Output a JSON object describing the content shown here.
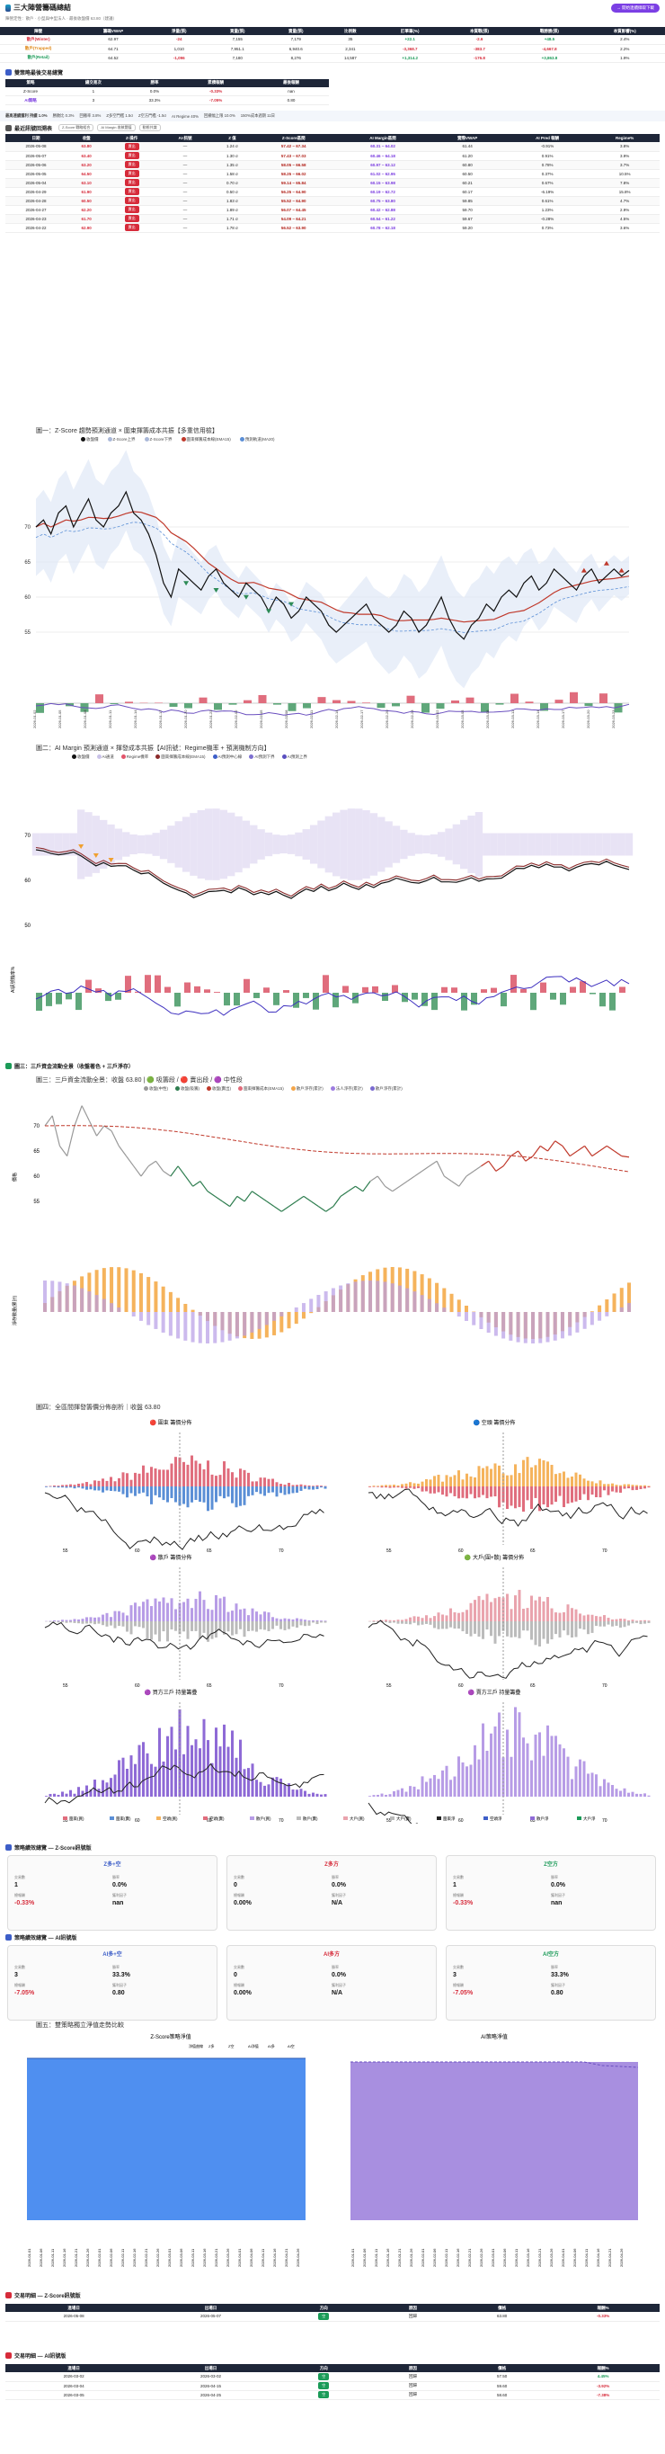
{
  "header": {
    "title": "三大陣營籌碼總結",
    "subtitle": "陣營定性：散戶 · 小型與中型法人 · 最後收盤價 63.80（建議）",
    "action_button": "→ 開始連續擷取下載"
  },
  "summary_table": {
    "columns": [
      "陣營",
      "籌碼VWAP",
      "淨量(張)",
      "買量(張)",
      "賣量(張)",
      "比例數",
      "訂單筆(%)",
      "本質戰(張)",
      "戰勝勝(張)",
      "本質影響(%)"
    ],
    "rows": [
      {
        "name": "散戶(Winter)",
        "c1": "62.97",
        "c2": "-24",
        "c3": "7,155",
        "c4": "7,179",
        "c5": "35",
        "c6": "+22.1",
        "c7": "-2.6",
        "c8": "+48.5",
        "c9": "2.4%"
      },
      {
        "name": "散戶(Trapped)",
        "c1": "64.71",
        "c2": "1,010",
        "c3": "7,951.1",
        "c4": "6,940.6",
        "c5": "2,341",
        "c6": "-3,368.7",
        "c7": "-383.7",
        "c8": "-4,667.8",
        "c9": "2.2%"
      },
      {
        "name": "散戶(Retail)",
        "c1": "64.52",
        "c2": "-1,096",
        "c3": "7,180",
        "c4": "8,276",
        "c5": "14,587",
        "c6": "+1,314.2",
        "c7": "-176.8",
        "c8": "+3,863.8",
        "c9": "1.9%"
      }
    ]
  },
  "strategy": {
    "title": "雙策略最後交易總覽",
    "columns": [
      "策略",
      "總交易次",
      "勝率",
      "累積報酬",
      "最後報酬"
    ],
    "rows": [
      {
        "name": "Z-Score",
        "trades": "1",
        "win": "0.0%",
        "cum": "-0.33%",
        "last": "nan"
      },
      {
        "name": "AI策略",
        "trades": "3",
        "win": "33.3%",
        "cum": "-7.05%",
        "last": "0.80"
      }
    ]
  },
  "infobar": {
    "items": [
      "最高連續獲利 持續 1.0%",
      "勝敗比 0.3%",
      "回撤率 3.8%",
      "Z多空門檻 1.5σ",
      "Z空方門檻 -1.5σ",
      "AI Regime 40%",
      "回撤幅上限 10.0%",
      "150%成本週期 11日"
    ]
  },
  "recent": {
    "title": "最近訊號回溯表",
    "tags": [
      "Z-Score 戰略組合",
      "AI Margin 收斂閾值",
      "動態共識"
    ],
    "columns": [
      "日期",
      "收盤",
      "Z-操作",
      "AI-訊號",
      "Z 值",
      "Z-Score區間",
      "AI Margin區間",
      "實際VWAP",
      "AI Pred 報酬",
      "Regime%"
    ],
    "rows": [
      {
        "date": "2026-05-08",
        "close": "63.80",
        "op": "賣出",
        "ai": "—",
        "z": "1.24 σ",
        "zr": "57.42 ~ 67.34",
        "ar": "60.31 ~ 64.02",
        "vw": "61.44",
        "pr": "-0.91%",
        "rg": "3.8%"
      },
      {
        "date": "2026-05-07",
        "close": "63.40",
        "op": "賣出",
        "ai": "—",
        "z": "1.30 σ",
        "zr": "57.43 ~ 67.03",
        "ar": "60.46 ~ 64.18",
        "vw": "61.20",
        "pr": "0.91%",
        "rg": "3.9%"
      },
      {
        "date": "2026-05-06",
        "close": "63.20",
        "op": "賣出",
        "ai": "—",
        "z": "1.35 σ",
        "zr": "58.05 ~ 66.58",
        "ar": "60.97 ~ 63.12",
        "vw": "60.80",
        "pr": "0.78%",
        "rg": "3.7%"
      },
      {
        "date": "2026-05-05",
        "close": "64.50",
        "op": "賣出",
        "ai": "—",
        "z": "1.58 σ",
        "zr": "58.25 ~ 66.02",
        "ar": "61.02 ~ 62.95",
        "vw": "60.50",
        "pr": "0.37%",
        "rg": "10.5%"
      },
      {
        "date": "2026-05-04",
        "close": "63.10",
        "op": "賣出",
        "ai": "—",
        "z": "0.70 σ",
        "zr": "59.14 ~ 65.84",
        "ar": "60.15 ~ 63.98",
        "vw": "60.21",
        "pr": "0.67%",
        "rg": "7.8%"
      },
      {
        "date": "2026-04-29",
        "close": "61.90",
        "op": "賣出",
        "ai": "—",
        "z": "0.50 σ",
        "zr": "56.25 ~ 64.90",
        "ar": "60.19 ~ 62.72",
        "vw": "60.17",
        "pr": "-6.19%",
        "rg": "15.8%"
      },
      {
        "date": "2026-04-28",
        "close": "60.50",
        "op": "賣出",
        "ai": "—",
        "z": "1.83 σ",
        "zr": "55.52 ~ 64.90",
        "ar": "60.75 ~ 63.80",
        "vw": "59.85",
        "pr": "0.61%",
        "rg": "4.7%"
      },
      {
        "date": "2026-04-27",
        "close": "62.20",
        "op": "賣出",
        "ai": "—",
        "z": "1.89 σ",
        "zr": "56.07 ~ 64.45",
        "ar": "60.42 ~ 62.88",
        "vw": "59.70",
        "pr": "1.23%",
        "rg": "2.9%"
      },
      {
        "date": "2026-04-23",
        "close": "61.70",
        "op": "賣出",
        "ai": "—",
        "z": "1.71 σ",
        "zr": "54.09 ~ 64.21",
        "ar": "60.54 ~ 61.22",
        "vw": "59.67",
        "pr": "-0.28%",
        "rg": "4.5%"
      },
      {
        "date": "2026-04-22",
        "close": "62.90",
        "op": "賣出",
        "ai": "—",
        "z": "1.78 σ",
        "zr": "56.52 ~ 63.90",
        "ar": "60.78 ~ 62.18",
        "vw": "59.20",
        "pr": "0.73%",
        "rg": "3.6%"
      }
    ]
  },
  "fig1": {
    "title": "圖一：Z-Score 趨勢預測通道 × 圍束揮籌成本共振【多重信用檢】",
    "legend": [
      "收盤價",
      "Z-Score上界",
      "Z-Score下界",
      "圍束揮籌成本線(EMA15)",
      "預測軌道(MA20)"
    ]
  },
  "fig2": {
    "title": "圖二：AI Margin 預測通道 × 揮發成本共振【AI訊號：Regime機率 + 預測機制方向】",
    "legend": [
      "收盤價",
      "AI通道",
      "Regime機率",
      "圍束揮籌成本線(EMA15)",
      "AI預測中心線",
      "AI預測下界",
      "AI預測上界"
    ],
    "y2label": "AI訊號機率%"
  },
  "fig3": {
    "section": "圖三：三戶資金流動全景（收盤著色 + 三戶淨存）",
    "title": "圖三：三戶資金流動全景：收盤 63.80 | 🟢 吸籌段 / 🔴 賣出段 / 🟣 中性段",
    "legend": [
      "收盤(中性)",
      "收盤(吸籌)",
      "收盤(賣出)",
      "圍束揮籌成本(EMA15)",
      "散戶淨存(累計)",
      "法人淨存(累計)",
      "散戶淨存(累計)"
    ],
    "ylabel": "價格",
    "y2label": "淨存數量(累計)"
  },
  "fig4": {
    "title": "圖四：全區間揮發籌價分佈剖析｜收盤 63.80",
    "panels": [
      "🔴 圍束 籌價分佈",
      "🔵 空頭 籌價分佈",
      "🟣 散戶 籌價分佈",
      "🟢 大戶(圍+散) 籌價分佈",
      "🟣 買方三戶 持量籌疊",
      "🟣 賣方三戶 持量籌疊"
    ],
    "legend": [
      "圍束(買)",
      "圍束(賣)",
      "空頭(買)",
      "空頭(賣)",
      "散戶(買)",
      "散戶(賣)",
      "大戶(買)",
      "大戶(賣)",
      "圍束淨",
      "空頭淨",
      "散戶淨",
      "大戶淨"
    ]
  },
  "perf_z": {
    "title": "策略績效總覽 — Z-Score訊號版",
    "cards": [
      {
        "name": "Z多+空",
        "trades": "1",
        "win": "0.0%",
        "ret": "-0.33%",
        "pf": "nan"
      },
      {
        "name": "Z多方",
        "trades": "0",
        "win": "0.0%",
        "ret": "0.00%",
        "pf": "N/A"
      },
      {
        "name": "Z空方",
        "trades": "1",
        "win": "0.0%",
        "ret": "-0.33%",
        "pf": "nan"
      }
    ],
    "k_trades": "交易數",
    "k_win": "勝率",
    "k_ret": "總報酬",
    "k_pf": "獲利因子"
  },
  "perf_ai": {
    "title": "策略績效總覽 — AI訊號版",
    "cards": [
      {
        "name": "AI多+空",
        "trades": "3",
        "win": "33.3%",
        "ret": "-7.05%",
        "pf": "0.80"
      },
      {
        "name": "AI多方",
        "trades": "0",
        "win": "0.0%",
        "ret": "0.00%",
        "pf": "N/A"
      },
      {
        "name": "AI空方",
        "trades": "3",
        "win": "33.3%",
        "ret": "-7.05%",
        "pf": "0.80"
      }
    ]
  },
  "fig5": {
    "title": "圖五：雙策略獨立淨值走勢比較",
    "left_title": "Z-Score策略淨值",
    "right_title": "AI策略淨值",
    "left_legend": [
      "淨值曲線",
      "Z多",
      "Z空",
      "AI淨值",
      "AI多",
      "AI空"
    ]
  },
  "trades_z": {
    "title": "交易明細 — Z-Score訊號版",
    "columns": [
      "進場日",
      "出場日",
      "方向",
      "原因",
      "價格",
      "報酬%"
    ],
    "rows": [
      {
        "in": "2026-05-08",
        "out": "2026-05-07",
        "dir": "空",
        "reason": "回歸",
        "price": "63.80",
        "ret": "-0.33%"
      }
    ]
  },
  "trades_ai": {
    "title": "交易明細 — AI訊號版",
    "columns": [
      "進場日",
      "出場日",
      "方向",
      "原因",
      "價格",
      "報酬%"
    ],
    "rows": [
      {
        "in": "2026-03-02",
        "out": "2026-03-02",
        "dir": "空",
        "reason": "回歸",
        "price": "57.50",
        "ret": "4.45%"
      },
      {
        "in": "2026-03-04",
        "out": "2026-04-15",
        "dir": "空",
        "reason": "回歸",
        "price": "59.60",
        "ret": "-3.92%"
      },
      {
        "in": "2026-03-05",
        "out": "2026-04-25",
        "dir": "空",
        "reason": "回歸",
        "price": "58.60",
        "ret": "-7.38%"
      }
    ]
  },
  "colors": {
    "red": "#d62b3a",
    "green": "#1b9b58",
    "purple": "#7a3be0",
    "blue": "#3d5ec8",
    "navy": "#1e2638"
  }
}
